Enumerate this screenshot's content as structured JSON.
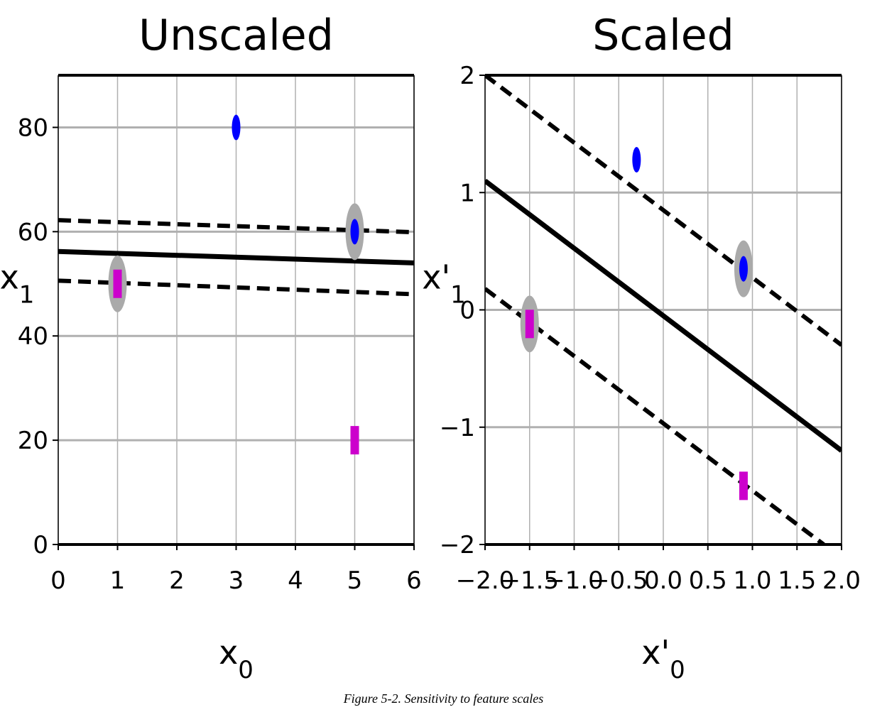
{
  "caption": "Figure 5-2. Sensitivity to feature scales",
  "colors": {
    "positive": "#0000ff",
    "negative": "#cc00cc",
    "support_vector_halo": "#aaaaaa",
    "grid": "#b0b0b0",
    "boundary": "#000000"
  },
  "chart_data": [
    {
      "type": "scatter",
      "title": "Unscaled",
      "xlabel": "x0",
      "ylabel": "x1",
      "xlim": [
        0,
        6
      ],
      "ylim": [
        0,
        90
      ],
      "xticks": [
        "0",
        "1",
        "2",
        "3",
        "4",
        "5",
        "6"
      ],
      "yticks": [
        "0",
        "20",
        "40",
        "60",
        "80"
      ],
      "grid": true,
      "series": [
        {
          "marker": "circle",
          "color": "#0000ff",
          "points": [
            {
              "x": 3,
              "y": 80,
              "support_vector": false
            },
            {
              "x": 5,
              "y": 60,
              "support_vector": true
            }
          ]
        },
        {
          "marker": "square",
          "color": "#cc00cc",
          "points": [
            {
              "x": 1,
              "y": 50,
              "support_vector": true
            },
            {
              "x": 5,
              "y": 20,
              "support_vector": false
            }
          ]
        }
      ],
      "lines": [
        {
          "style": "solid",
          "points": [
            [
              0,
              56.2
            ],
            [
              6,
              54.0
            ]
          ]
        },
        {
          "style": "dashed",
          "points": [
            [
              0,
              62.2
            ],
            [
              6,
              59.9
            ]
          ]
        },
        {
          "style": "dashed",
          "points": [
            [
              0,
              50.6
            ],
            [
              6,
              48.0
            ]
          ]
        }
      ]
    },
    {
      "type": "scatter",
      "title": "Scaled",
      "xlabel": "x'0",
      "ylabel": "x'1",
      "xlim": [
        -2,
        2
      ],
      "ylim": [
        -2,
        2
      ],
      "xticks": [
        "−2.0",
        "−1.5",
        "−1.0",
        "−0.5",
        "0.0",
        "0.5",
        "1.0",
        "1.5",
        "2.0"
      ],
      "yticks": [
        "−2",
        "−1",
        "0",
        "1",
        "2"
      ],
      "grid": true,
      "series": [
        {
          "marker": "circle",
          "color": "#0000ff",
          "points": [
            {
              "x": -0.3,
              "y": 1.28,
              "support_vector": false
            },
            {
              "x": 0.9,
              "y": 0.35,
              "support_vector": true
            }
          ]
        },
        {
          "marker": "square",
          "color": "#cc00cc",
          "points": [
            {
              "x": -1.5,
              "y": -0.12,
              "support_vector": true
            },
            {
              "x": 0.9,
              "y": -1.5,
              "support_vector": false
            }
          ]
        }
      ],
      "lines": [
        {
          "style": "solid",
          "points": [
            [
              -2.0,
              1.1
            ],
            [
              2.0,
              -1.2
            ]
          ]
        },
        {
          "style": "dashed",
          "points": [
            [
              -2.0,
              2.0
            ],
            [
              2.0,
              -0.3
            ]
          ]
        },
        {
          "style": "dashed",
          "points": [
            [
              -2.0,
              0.18
            ],
            [
              1.8,
              -2.0
            ]
          ]
        }
      ]
    }
  ]
}
